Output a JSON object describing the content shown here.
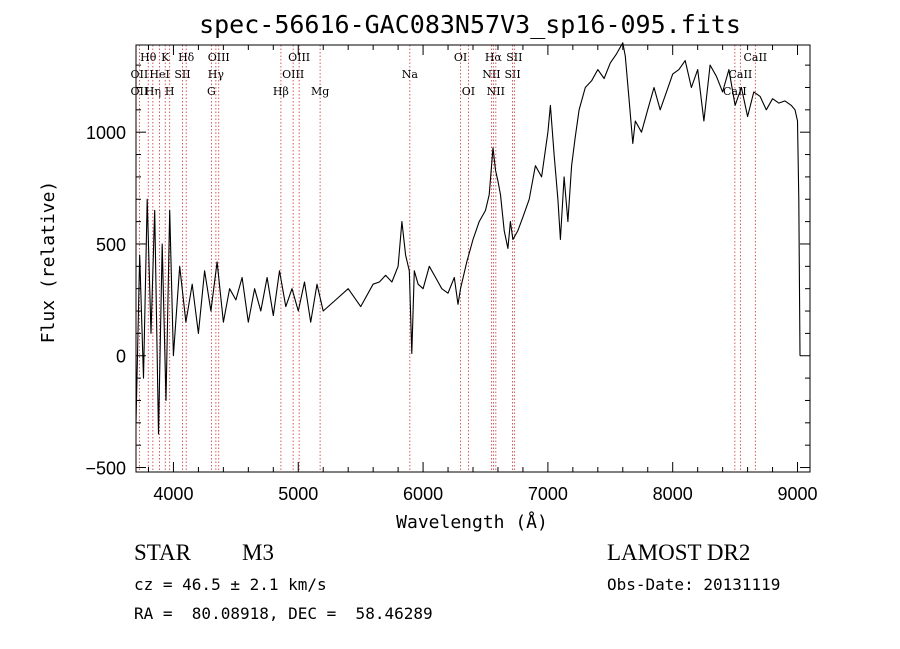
{
  "chart_data": {
    "type": "line",
    "title": "spec-56616-GAC083N57V3_sp16-095.fits",
    "xlabel": "Wavelength (Å)",
    "ylabel": "Flux (relative)",
    "xlim": [
      3700,
      9100
    ],
    "ylim": [
      -520,
      1390
    ],
    "x_ticks": [
      4000,
      5000,
      6000,
      7000,
      8000,
      9000
    ],
    "x_tick_labels": [
      "4000",
      "5000",
      "6000",
      "7000",
      "8000",
      "9000"
    ],
    "y_ticks": [
      -500,
      0,
      500,
      1000
    ],
    "y_tick_labels": [
      "−500",
      "0",
      "500",
      "1000"
    ],
    "series": [
      {
        "name": "flux",
        "x": [
          3700,
          3730,
          3760,
          3790,
          3820,
          3850,
          3880,
          3910,
          3940,
          3970,
          4000,
          4050,
          4100,
          4150,
          4200,
          4250,
          4300,
          4350,
          4400,
          4450,
          4500,
          4550,
          4600,
          4650,
          4700,
          4750,
          4800,
          4850,
          4900,
          4950,
          5000,
          5050,
          5100,
          5150,
          5200,
          5300,
          5400,
          5500,
          5600,
          5650,
          5700,
          5750,
          5800,
          5830,
          5860,
          5890,
          5910,
          5930,
          5960,
          6000,
          6050,
          6100,
          6150,
          6200,
          6250,
          6280,
          6300,
          6350,
          6400,
          6450,
          6500,
          6530,
          6560,
          6580,
          6600,
          6620,
          6650,
          6680,
          6700,
          6720,
          6760,
          6800,
          6850,
          6900,
          6950,
          7000,
          7020,
          7050,
          7080,
          7100,
          7130,
          7160,
          7190,
          7220,
          7250,
          7300,
          7350,
          7400,
          7450,
          7500,
          7550,
          7600,
          7620,
          7650,
          7680,
          7700,
          7750,
          7800,
          7850,
          7900,
          7950,
          8000,
          8050,
          8100,
          8150,
          8200,
          8250,
          8300,
          8350,
          8400,
          8450,
          8500,
          8550,
          8600,
          8650,
          8700,
          8750,
          8800,
          8850,
          8900,
          8950,
          8980,
          9000,
          9010,
          9020
        ],
        "y": [
          -300,
          450,
          -100,
          700,
          100,
          650,
          -350,
          500,
          -200,
          650,
          0,
          400,
          150,
          320,
          100,
          380,
          200,
          420,
          150,
          300,
          250,
          350,
          150,
          300,
          200,
          350,
          180,
          380,
          220,
          300,
          200,
          330,
          150,
          320,
          200,
          250,
          300,
          220,
          320,
          330,
          360,
          330,
          400,
          600,
          450,
          380,
          10,
          380,
          320,
          300,
          400,
          350,
          300,
          280,
          350,
          230,
          300,
          420,
          520,
          600,
          650,
          720,
          930,
          830,
          780,
          720,
          560,
          480,
          600,
          520,
          560,
          620,
          700,
          850,
          800,
          1000,
          1120,
          900,
          700,
          520,
          800,
          600,
          850,
          980,
          1100,
          1200,
          1230,
          1280,
          1240,
          1310,
          1350,
          1400,
          1340,
          1150,
          950,
          1050,
          1000,
          1100,
          1200,
          1100,
          1180,
          1260,
          1280,
          1320,
          1200,
          1280,
          1050,
          1300,
          1250,
          1180,
          1280,
          1120,
          1200,
          1070,
          1180,
          1160,
          1100,
          1150,
          1130,
          1140,
          1120,
          1100,
          1050,
          700,
          0
        ]
      }
    ],
    "line_markers": [
      {
        "wavelength": 3727,
        "label": "OII",
        "row": 2
      },
      {
        "wavelength": 3727,
        "label": "OII",
        "row": 3
      },
      {
        "wavelength": 3798,
        "label": "Hθ",
        "row": 1
      },
      {
        "wavelength": 3835,
        "label": "Hη",
        "row": 3
      },
      {
        "wavelength": 3889,
        "label": "HeI",
        "row": 2
      },
      {
        "wavelength": 3934,
        "label": "K",
        "row": 1
      },
      {
        "wavelength": 3970,
        "label": "H",
        "row": 3
      },
      {
        "wavelength": 4072,
        "label": "SII",
        "row": 2
      },
      {
        "wavelength": 4102,
        "label": "Hδ",
        "row": 1
      },
      {
        "wavelength": 4304,
        "label": "G",
        "row": 3
      },
      {
        "wavelength": 4340,
        "label": "Hγ",
        "row": 2
      },
      {
        "wavelength": 4363,
        "label": "OIII",
        "row": 1
      },
      {
        "wavelength": 4861,
        "label": "Hβ",
        "row": 3
      },
      {
        "wavelength": 4959,
        "label": "OIII",
        "row": 2
      },
      {
        "wavelength": 5007,
        "label": "OIII",
        "row": 1
      },
      {
        "wavelength": 5175,
        "label": "Mg",
        "row": 3
      },
      {
        "wavelength": 5894,
        "label": "Na",
        "row": 2
      },
      {
        "wavelength": 6300,
        "label": "OI",
        "row": 1
      },
      {
        "wavelength": 6363,
        "label": "OI",
        "row": 3
      },
      {
        "wavelength": 6548,
        "label": "NII",
        "row": 2
      },
      {
        "wavelength": 6563,
        "label": "Hα",
        "row": 1
      },
      {
        "wavelength": 6583,
        "label": "NII",
        "row": 3
      },
      {
        "wavelength": 6717,
        "label": "SII",
        "row": 2
      },
      {
        "wavelength": 6731,
        "label": "SII",
        "row": 1
      },
      {
        "wavelength": 8498,
        "label": "CaII",
        "row": 3
      },
      {
        "wavelength": 8542,
        "label": "CaII",
        "row": 2
      },
      {
        "wavelength": 8662,
        "label": "CaII",
        "row": 1
      }
    ],
    "marker_color": "#cc3333"
  },
  "info": {
    "class": "STAR",
    "subclass": "M3",
    "survey": "LAMOST DR2",
    "redshift": "cz = 46.5 ± 2.1 km/s",
    "obs_date": "Obs-Date: 20131119",
    "coords": "RA =  80.08918, DEC =  58.46289"
  }
}
